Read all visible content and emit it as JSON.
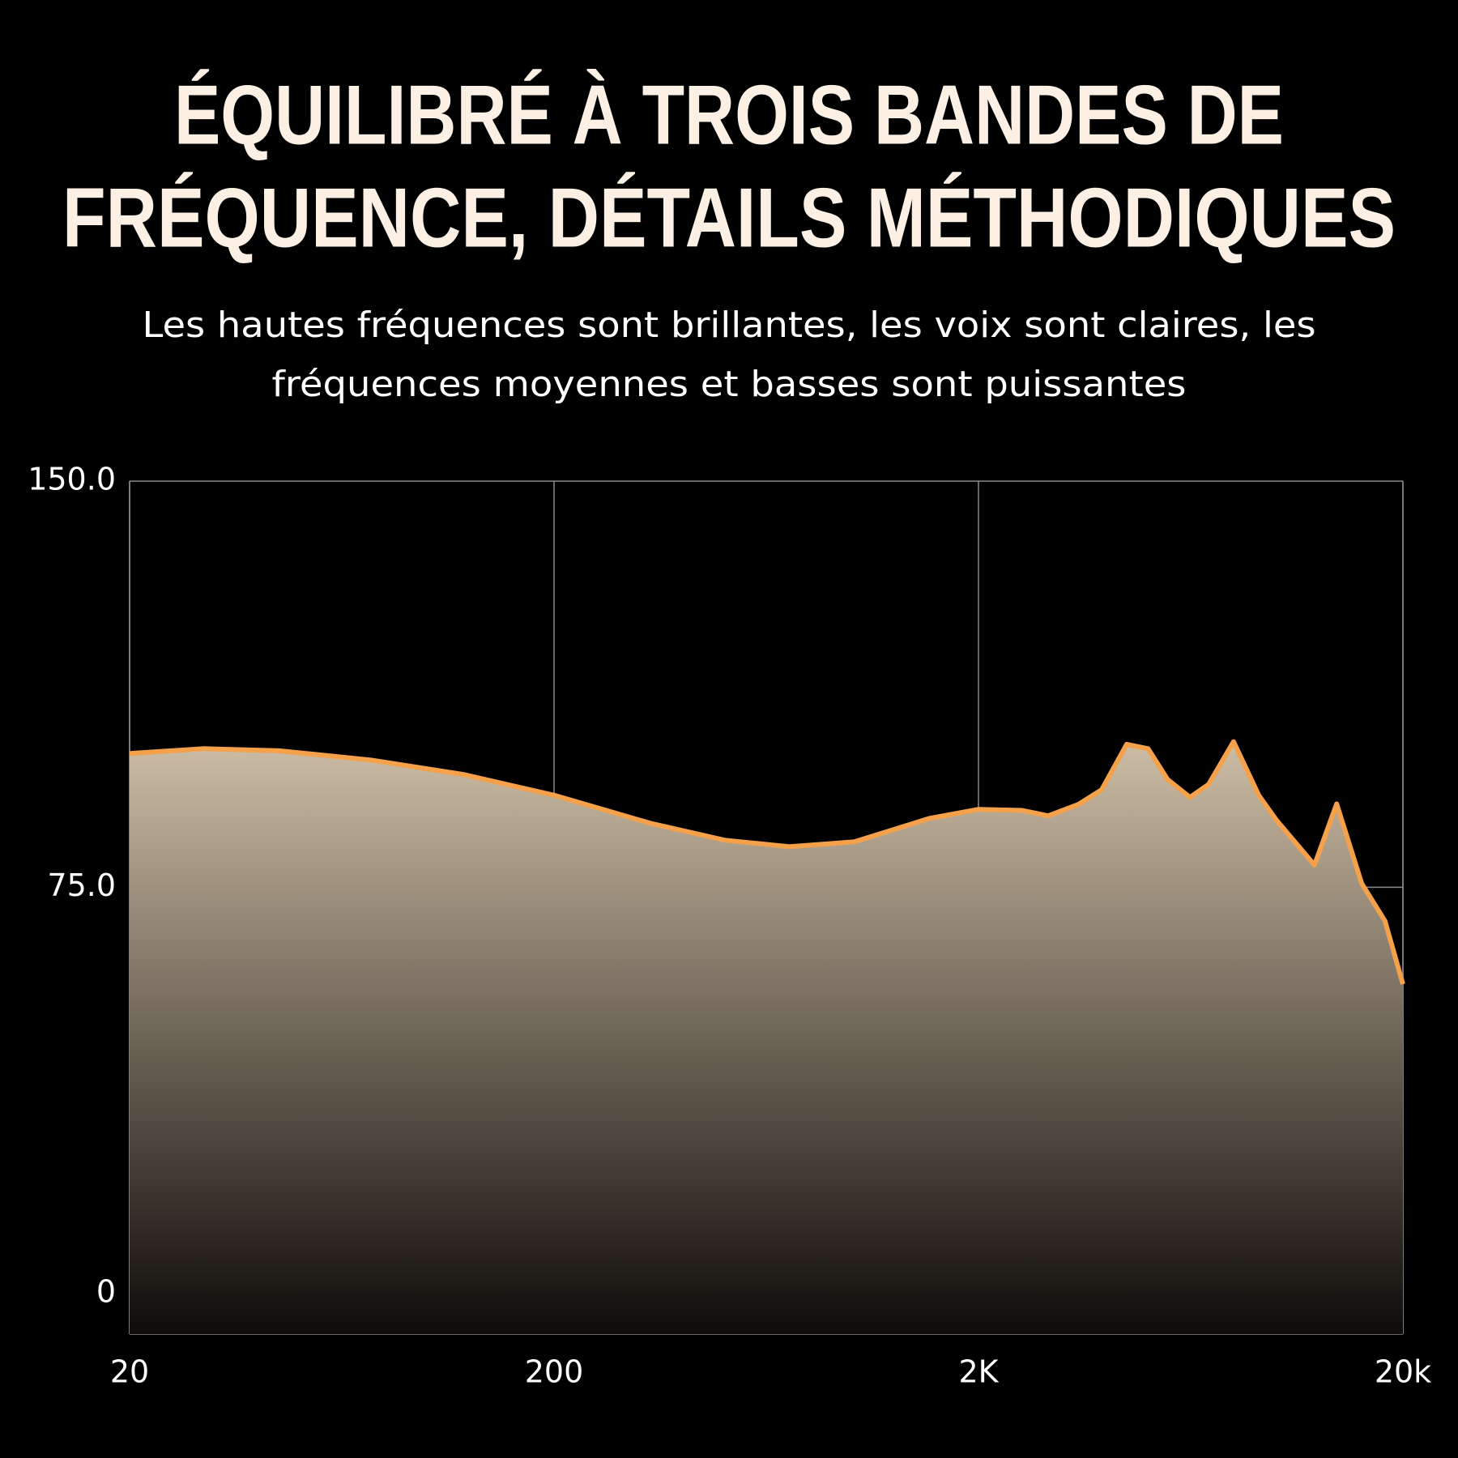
{
  "chart_data": {
    "type": "area",
    "title": [
      "ÉQUILIBRÉ À TROIS BANDES DE",
      "FRÉQUENCE, DÉTAILS MÉTHODIQUES"
    ],
    "subtitle": [
      "Les hautes fréquences sont brillantes, les voix sont claires, les",
      "fréquences moyennes et basses sont puissantes"
    ],
    "x": [
      20,
      30,
      45,
      74,
      123,
      200,
      338,
      505,
      719,
      1020,
      1530,
      2000,
      2535,
      2920,
      3440,
      3900,
      4470,
      5020,
      5580,
      6300,
      6970,
      7980,
      9150,
      10070,
      12380,
      13960,
      15990,
      18140,
      20000
    ],
    "values": [
      99.7,
      100.6,
      100.2,
      98.5,
      95.8,
      92,
      86.8,
      83.7,
      82.5,
      83.4,
      87.7,
      89.4,
      89.2,
      88.2,
      90.3,
      93,
      101.4,
      100.6,
      94.9,
      91.6,
      94,
      101.9,
      92,
      87.4,
      79.1,
      90.4,
      75.7,
      68.8,
      57.1
    ],
    "color": "#f5a04a",
    "fill_gradient": [
      "#cdbda5",
      "#0e0b09"
    ],
    "xscale": "log",
    "xlim": [
      20,
      20000
    ],
    "xticks": [
      20,
      200,
      {
        "value": 2000,
        "label": "2K"
      },
      {
        "value": 20000,
        "label": "20k"
      }
    ],
    "ylim": [
      -7.5,
      150
    ],
    "yticks": [
      {
        "value": 150,
        "label": "150.0"
      },
      {
        "value": 75,
        "label": "75.0"
      },
      0
    ],
    "grid": true
  }
}
